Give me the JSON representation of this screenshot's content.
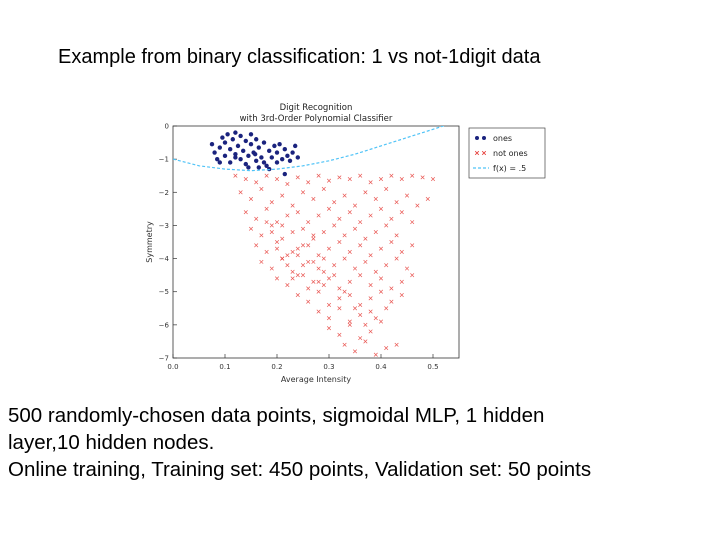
{
  "slide": {
    "title": "Example from binary classification: 1 vs not-1digit data",
    "caption_lines": [
      "500 randomly-chosen data points, sigmoidal MLP, 1 hidden",
      "layer,10 hidden nodes.",
      "Online training, Training set: 450 points, Validation set: 50 points"
    ]
  },
  "chart_data": {
    "type": "scatter",
    "title": [
      "Digit Recognition",
      "with 3rd-Order Polynomial Classifier"
    ],
    "xlabel": "Average Intensity",
    "ylabel": "Symmetry",
    "xlim": [
      0.0,
      0.55
    ],
    "ylim": [
      -7,
      0
    ],
    "xticks": [
      0.0,
      0.1,
      0.2,
      0.3,
      0.4,
      0.5
    ],
    "xtick_labels": [
      "0.0",
      "0.1",
      "0.2",
      "0.3",
      "0.4",
      "0.5"
    ],
    "yticks": [
      0,
      -1,
      -2,
      -3,
      -4,
      -5,
      -6,
      -7
    ],
    "ytick_labels": [
      "0",
      "−1",
      "−2",
      "−3",
      "−4",
      "−5",
      "−6",
      "−7"
    ],
    "legend": {
      "position": "outside-right",
      "entries": [
        {
          "label": "ones",
          "marker": "dot",
          "color": "#1a237e"
        },
        {
          "label": "not ones",
          "marker": "x",
          "color": "#e53935"
        },
        {
          "label": "f(x) = .5",
          "marker": "line",
          "color": "#4fc3f7"
        }
      ]
    },
    "series": [
      {
        "name": "ones",
        "marker": "dot",
        "color": "#1a237e",
        "points": [
          [
            0.075,
            -0.55
          ],
          [
            0.08,
            -0.8
          ],
          [
            0.085,
            -1.0
          ],
          [
            0.09,
            -0.65
          ],
          [
            0.095,
            -0.35
          ],
          [
            0.1,
            -0.9
          ],
          [
            0.1,
            -0.5
          ],
          [
            0.105,
            -0.25
          ],
          [
            0.11,
            -0.7
          ],
          [
            0.11,
            -1.1
          ],
          [
            0.115,
            -0.4
          ],
          [
            0.12,
            -0.85
          ],
          [
            0.12,
            -0.2
          ],
          [
            0.125,
            -0.6
          ],
          [
            0.13,
            -1.0
          ],
          [
            0.13,
            -0.3
          ],
          [
            0.135,
            -0.75
          ],
          [
            0.14,
            -0.45
          ],
          [
            0.14,
            -1.15
          ],
          [
            0.145,
            -0.9
          ],
          [
            0.15,
            -0.55
          ],
          [
            0.15,
            -0.25
          ],
          [
            0.155,
            -0.8
          ],
          [
            0.16,
            -1.05
          ],
          [
            0.16,
            -0.4
          ],
          [
            0.165,
            -0.65
          ],
          [
            0.17,
            -0.95
          ],
          [
            0.175,
            -0.5
          ],
          [
            0.18,
            -1.2
          ],
          [
            0.185,
            -0.75
          ],
          [
            0.19,
            -0.95
          ],
          [
            0.195,
            -0.6
          ],
          [
            0.2,
            -1.1
          ],
          [
            0.2,
            -0.8
          ],
          [
            0.205,
            -0.55
          ],
          [
            0.21,
            -1.0
          ],
          [
            0.215,
            -0.7
          ],
          [
            0.22,
            -0.9
          ],
          [
            0.225,
            -1.05
          ],
          [
            0.23,
            -0.8
          ],
          [
            0.235,
            -0.6
          ],
          [
            0.185,
            -1.3
          ],
          [
            0.165,
            -1.25
          ],
          [
            0.145,
            -1.25
          ],
          [
            0.09,
            -1.1
          ],
          [
            0.12,
            -0.95
          ],
          [
            0.175,
            -1.1
          ],
          [
            0.24,
            -0.95
          ],
          [
            0.158,
            -0.85
          ],
          [
            0.215,
            -1.45
          ]
        ]
      },
      {
        "name": "not ones",
        "marker": "x",
        "color": "#e53935",
        "points": [
          [
            0.12,
            -1.5
          ],
          [
            0.14,
            -1.6
          ],
          [
            0.16,
            -1.7
          ],
          [
            0.18,
            -1.5
          ],
          [
            0.2,
            -1.6
          ],
          [
            0.22,
            -1.75
          ],
          [
            0.24,
            -1.55
          ],
          [
            0.26,
            -1.7
          ],
          [
            0.28,
            -1.5
          ],
          [
            0.3,
            -1.65
          ],
          [
            0.32,
            -1.55
          ],
          [
            0.34,
            -1.6
          ],
          [
            0.36,
            -1.5
          ],
          [
            0.38,
            -1.7
          ],
          [
            0.4,
            -1.6
          ],
          [
            0.42,
            -1.5
          ],
          [
            0.44,
            -1.6
          ],
          [
            0.46,
            -1.5
          ],
          [
            0.48,
            -1.55
          ],
          [
            0.5,
            -1.6
          ],
          [
            0.13,
            -2.0
          ],
          [
            0.15,
            -2.2
          ],
          [
            0.17,
            -1.9
          ],
          [
            0.19,
            -2.3
          ],
          [
            0.21,
            -2.1
          ],
          [
            0.23,
            -2.4
          ],
          [
            0.25,
            -2.0
          ],
          [
            0.27,
            -2.2
          ],
          [
            0.29,
            -1.9
          ],
          [
            0.31,
            -2.3
          ],
          [
            0.33,
            -2.1
          ],
          [
            0.35,
            -2.4
          ],
          [
            0.37,
            -2.0
          ],
          [
            0.39,
            -2.2
          ],
          [
            0.41,
            -1.9
          ],
          [
            0.43,
            -2.3
          ],
          [
            0.45,
            -2.1
          ],
          [
            0.47,
            -2.4
          ],
          [
            0.49,
            -2.2
          ],
          [
            0.14,
            -2.6
          ],
          [
            0.16,
            -2.8
          ],
          [
            0.18,
            -2.5
          ],
          [
            0.2,
            -2.9
          ],
          [
            0.22,
            -2.7
          ],
          [
            0.24,
            -2.6
          ],
          [
            0.26,
            -2.9
          ],
          [
            0.28,
            -2.7
          ],
          [
            0.3,
            -2.5
          ],
          [
            0.32,
            -2.8
          ],
          [
            0.34,
            -2.6
          ],
          [
            0.36,
            -2.9
          ],
          [
            0.38,
            -2.7
          ],
          [
            0.4,
            -2.5
          ],
          [
            0.42,
            -2.8
          ],
          [
            0.44,
            -2.6
          ],
          [
            0.46,
            -2.9
          ],
          [
            0.15,
            -3.1
          ],
          [
            0.17,
            -3.3
          ],
          [
            0.19,
            -3.0
          ],
          [
            0.21,
            -3.4
          ],
          [
            0.23,
            -3.2
          ],
          [
            0.25,
            -3.1
          ],
          [
            0.27,
            -3.4
          ],
          [
            0.29,
            -3.2
          ],
          [
            0.31,
            -3.0
          ],
          [
            0.33,
            -3.3
          ],
          [
            0.35,
            -3.1
          ],
          [
            0.37,
            -3.4
          ],
          [
            0.39,
            -3.2
          ],
          [
            0.41,
            -3.0
          ],
          [
            0.43,
            -3.3
          ],
          [
            0.16,
            -3.6
          ],
          [
            0.18,
            -3.8
          ],
          [
            0.2,
            -3.5
          ],
          [
            0.22,
            -3.9
          ],
          [
            0.24,
            -3.7
          ],
          [
            0.26,
            -3.6
          ],
          [
            0.28,
            -3.9
          ],
          [
            0.3,
            -3.7
          ],
          [
            0.32,
            -3.5
          ],
          [
            0.34,
            -3.8
          ],
          [
            0.36,
            -3.6
          ],
          [
            0.38,
            -3.9
          ],
          [
            0.4,
            -3.7
          ],
          [
            0.42,
            -3.5
          ],
          [
            0.44,
            -3.8
          ],
          [
            0.46,
            -3.6
          ],
          [
            0.17,
            -4.1
          ],
          [
            0.19,
            -4.3
          ],
          [
            0.21,
            -4.0
          ],
          [
            0.23,
            -4.4
          ],
          [
            0.25,
            -4.2
          ],
          [
            0.27,
            -4.1
          ],
          [
            0.29,
            -4.4
          ],
          [
            0.31,
            -4.2
          ],
          [
            0.33,
            -4.0
          ],
          [
            0.35,
            -4.3
          ],
          [
            0.37,
            -4.1
          ],
          [
            0.39,
            -4.4
          ],
          [
            0.41,
            -4.2
          ],
          [
            0.43,
            -4.0
          ],
          [
            0.45,
            -4.3
          ],
          [
            0.2,
            -4.6
          ],
          [
            0.22,
            -4.8
          ],
          [
            0.24,
            -4.5
          ],
          [
            0.26,
            -4.9
          ],
          [
            0.28,
            -4.7
          ],
          [
            0.3,
            -4.6
          ],
          [
            0.32,
            -4.9
          ],
          [
            0.34,
            -4.7
          ],
          [
            0.36,
            -4.5
          ],
          [
            0.38,
            -4.8
          ],
          [
            0.4,
            -4.6
          ],
          [
            0.42,
            -4.9
          ],
          [
            0.44,
            -4.7
          ],
          [
            0.46,
            -4.5
          ],
          [
            0.24,
            -5.1
          ],
          [
            0.26,
            -5.3
          ],
          [
            0.28,
            -5.0
          ],
          [
            0.3,
            -5.4
          ],
          [
            0.32,
            -5.2
          ],
          [
            0.34,
            -5.1
          ],
          [
            0.36,
            -5.4
          ],
          [
            0.38,
            -5.2
          ],
          [
            0.4,
            -5.0
          ],
          [
            0.42,
            -5.3
          ],
          [
            0.44,
            -5.1
          ],
          [
            0.28,
            -5.6
          ],
          [
            0.3,
            -5.8
          ],
          [
            0.32,
            -5.5
          ],
          [
            0.34,
            -5.9
          ],
          [
            0.36,
            -5.7
          ],
          [
            0.38,
            -5.6
          ],
          [
            0.4,
            -5.9
          ],
          [
            0.3,
            -6.1
          ],
          [
            0.32,
            -6.3
          ],
          [
            0.34,
            -6.0
          ],
          [
            0.36,
            -6.4
          ],
          [
            0.38,
            -6.2
          ],
          [
            0.33,
            -6.6
          ],
          [
            0.35,
            -6.8
          ],
          [
            0.37,
            -6.5
          ],
          [
            0.39,
            -6.9
          ],
          [
            0.41,
            -6.7
          ],
          [
            0.43,
            -6.6
          ],
          [
            0.21,
            -3.0
          ],
          [
            0.23,
            -3.8
          ],
          [
            0.25,
            -4.5
          ],
          [
            0.27,
            -3.3
          ],
          [
            0.29,
            -4.8
          ],
          [
            0.22,
            -4.2
          ],
          [
            0.24,
            -3.9
          ],
          [
            0.26,
            -4.1
          ],
          [
            0.28,
            -4.3
          ],
          [
            0.2,
            -3.7
          ],
          [
            0.19,
            -3.2
          ],
          [
            0.18,
            -2.9
          ],
          [
            0.21,
            -4.0
          ],
          [
            0.23,
            -4.6
          ],
          [
            0.25,
            -3.6
          ],
          [
            0.27,
            -4.7
          ],
          [
            0.29,
            -4.0
          ],
          [
            0.31,
            -4.5
          ],
          [
            0.33,
            -5.0
          ],
          [
            0.35,
            -5.5
          ],
          [
            0.37,
            -6.0
          ],
          [
            0.39,
            -5.8
          ],
          [
            0.41,
            -5.5
          ]
        ]
      }
    ],
    "decision_boundary": {
      "label": "f(x) = .5",
      "x": [
        0.0,
        0.05,
        0.1,
        0.15,
        0.2,
        0.25,
        0.3,
        0.35,
        0.4,
        0.45,
        0.5,
        0.55
      ],
      "y": [
        -1.0,
        -1.2,
        -1.3,
        -1.35,
        -1.3,
        -1.2,
        -1.05,
        -0.85,
        -0.6,
        -0.35,
        -0.1,
        0.15
      ]
    }
  }
}
